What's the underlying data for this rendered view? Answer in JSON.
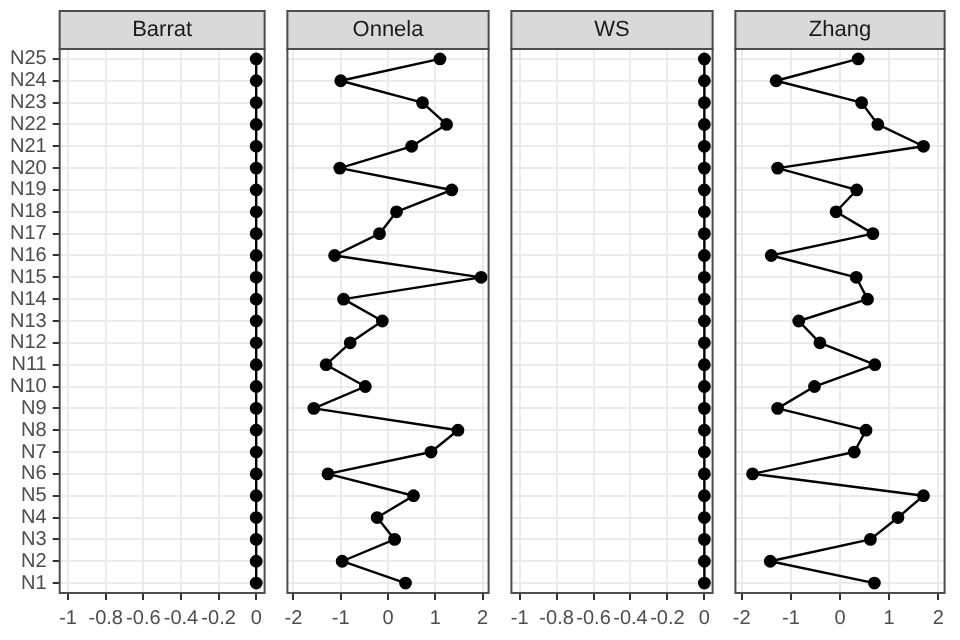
{
  "chart_data": [
    {
      "type": "line",
      "orientation": "horizontal",
      "title": "Barrat",
      "categories": [
        "N25",
        "N24",
        "N23",
        "N22",
        "N21",
        "N20",
        "N19",
        "N18",
        "N17",
        "N16",
        "N15",
        "N14",
        "N13",
        "N12",
        "N11",
        "N10",
        "N9",
        "N8",
        "N7",
        "N6",
        "N5",
        "N4",
        "N3",
        "N2",
        "N1"
      ],
      "values": [
        0,
        0,
        0,
        0,
        0,
        0,
        0,
        0,
        0,
        0,
        0,
        0,
        0,
        0,
        0,
        0,
        0,
        0,
        0,
        0,
        0,
        0,
        0,
        0,
        0
      ],
      "color": "#000000",
      "xlim": [
        -1.05,
        0.05
      ],
      "xticks": [
        -1,
        -0.8,
        -0.6,
        -0.4,
        -0.2,
        0
      ],
      "grid": true,
      "marker": "circle"
    },
    {
      "type": "line",
      "orientation": "horizontal",
      "title": "Onnela",
      "categories": [
        "N25",
        "N24",
        "N23",
        "N22",
        "N21",
        "N20",
        "N19",
        "N18",
        "N17",
        "N16",
        "N15",
        "N14",
        "N13",
        "N12",
        "N11",
        "N10",
        "N9",
        "N8",
        "N7",
        "N6",
        "N5",
        "N4",
        "N3",
        "N2",
        "N1"
      ],
      "values": [
        1.1,
        -1.0,
        0.73,
        1.24,
        0.5,
        -1.02,
        1.35,
        0.18,
        -0.18,
        -1.13,
        1.97,
        -0.94,
        -0.12,
        -0.8,
        -1.31,
        -0.48,
        -1.57,
        1.48,
        0.91,
        -1.27,
        0.54,
        -0.23,
        0.14,
        -0.97,
        0.37
      ],
      "color": "#000000",
      "xlim": [
        -2.15,
        2.15
      ],
      "xticks": [
        -2,
        -1,
        0,
        1,
        2
      ],
      "grid": true,
      "marker": "circle",
      "tick_labels": "x"
    },
    {
      "type": "line",
      "orientation": "horizontal",
      "title": "WS",
      "categories": [
        "N25",
        "N24",
        "N23",
        "N22",
        "N21",
        "N20",
        "N19",
        "N18",
        "N17",
        "N16",
        "N15",
        "N14",
        "N13",
        "N12",
        "N11",
        "N10",
        "N9",
        "N8",
        "N7",
        "N6",
        "N5",
        "N4",
        "N3",
        "N2",
        "N1"
      ],
      "values": [
        0,
        0,
        0,
        0,
        0,
        0,
        0,
        0,
        0,
        0,
        0,
        0,
        0,
        0,
        0,
        0,
        0,
        0,
        0,
        0,
        0,
        0,
        0,
        0,
        0
      ],
      "color": "#000000",
      "xlim": [
        -1.05,
        0.05
      ],
      "xticks": [
        -1,
        -0.8,
        -0.6,
        -0.4,
        -0.2,
        0
      ],
      "grid": true,
      "marker": "circle",
      "tick_labels": "x"
    },
    {
      "type": "line",
      "orientation": "horizontal",
      "title": "Zhang",
      "categories": [
        "N25",
        "N24",
        "N23",
        "N22",
        "N21",
        "N20",
        "N19",
        "N18",
        "N17",
        "N16",
        "N15",
        "N14",
        "N13",
        "N12",
        "N11",
        "N10",
        "N9",
        "N8",
        "N7",
        "N6",
        "N5",
        "N4",
        "N3",
        "N2",
        "N1"
      ],
      "values": [
        0.37,
        -1.3,
        0.44,
        0.77,
        1.7,
        -1.27,
        0.34,
        -0.08,
        0.67,
        -1.4,
        0.33,
        0.56,
        -0.84,
        -0.41,
        0.71,
        -0.52,
        -1.27,
        0.53,
        0.29,
        -1.78,
        1.7,
        1.18,
        0.62,
        -1.42,
        0.7
      ],
      "color": "#000000",
      "xlim": [
        -2.15,
        2.15
      ],
      "xticks": [
        -2,
        -1,
        0,
        1,
        2
      ],
      "grid": true,
      "marker": "circle",
      "tick_labels": "x"
    }
  ]
}
